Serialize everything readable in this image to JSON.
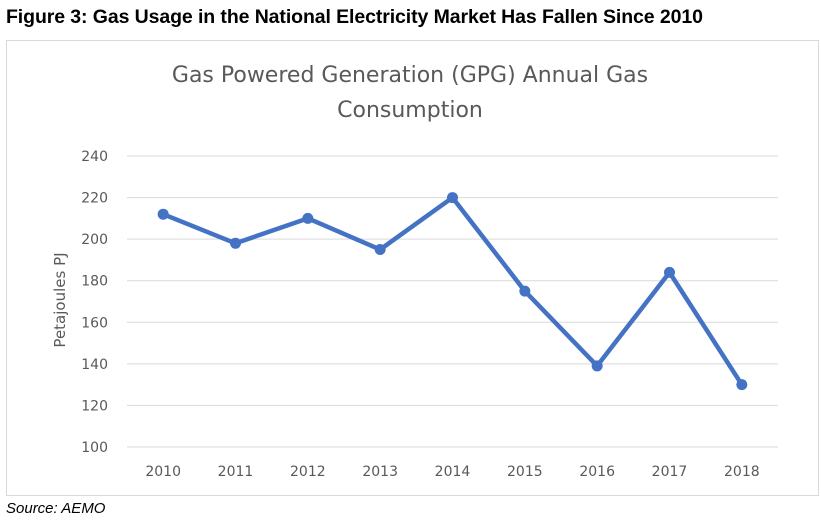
{
  "figure": {
    "title": "Figure 3: Gas Usage in the National Electricity Market Has Fallen Since 2010",
    "source": "Source: AEMO"
  },
  "colors": {
    "series": "#4472c4",
    "grid": "#d9d9d9",
    "text": "#595959"
  },
  "chart_data": {
    "type": "line",
    "title_lines": [
      "Gas Powered Generation (GPG) Annual Gas",
      "Consumption"
    ],
    "xlabel": "",
    "ylabel": "Petajoules PJ",
    "categories": [
      "2010",
      "2011",
      "2012",
      "2013",
      "2014",
      "2015",
      "2016",
      "2017",
      "2018"
    ],
    "series": [
      {
        "name": "GPG Annual Gas Consumption",
        "values": [
          212,
          198,
          210,
          195,
          220,
          175,
          139,
          184,
          130
        ]
      }
    ],
    "ylim": [
      100,
      240
    ],
    "yticks": [
      100,
      120,
      140,
      160,
      180,
      200,
      220,
      240
    ],
    "grid": true,
    "legend": "none"
  }
}
